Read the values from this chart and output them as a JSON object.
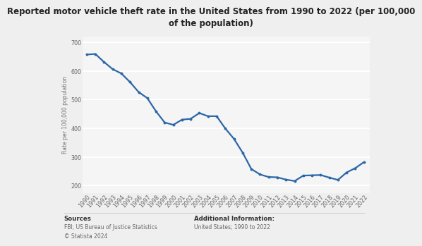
{
  "title_line1": "Reported motor vehicle theft rate in the United States from 1990 to 2022 (per 100,000",
  "title_line2": "of the population)",
  "ylabel": "Rate per 100,000 population",
  "years": [
    1990,
    1991,
    1992,
    1993,
    1994,
    1995,
    1996,
    1997,
    1998,
    1999,
    2000,
    2001,
    2002,
    2003,
    2004,
    2005,
    2006,
    2007,
    2008,
    2009,
    2010,
    2011,
    2012,
    2013,
    2014,
    2015,
    2016,
    2017,
    2018,
    2019,
    2020,
    2021,
    2022
  ],
  "values": [
    657,
    659,
    631,
    606,
    591,
    561,
    526,
    505,
    459,
    420,
    412,
    430,
    433,
    453,
    442,
    442,
    399,
    363,
    315,
    258,
    239,
    230,
    229,
    221,
    216,
    235,
    236,
    237,
    228,
    220,
    246,
    261,
    282
  ],
  "line_color": "#2c67a8",
  "line_width": 1.6,
  "marker_size": 2.8,
  "ylim": [
    175,
    720
  ],
  "yticks": [
    200,
    300,
    400,
    500,
    600,
    700
  ],
  "bg_color": "#efefef",
  "plot_bg_color": "#f5f5f5",
  "grid_color": "#ffffff",
  "sources_label": "Sources",
  "sources_body": "FBI; US Bureau of Justice Statistics\n© Statista 2024",
  "additional_label": "Additional Information:",
  "additional_body": "United States; 1990 to 2022",
  "title_fontsize": 8.5,
  "axis_label_fontsize": 5.5,
  "tick_fontsize": 5.8,
  "footer_label_fontsize": 6.2,
  "footer_body_fontsize": 5.5
}
